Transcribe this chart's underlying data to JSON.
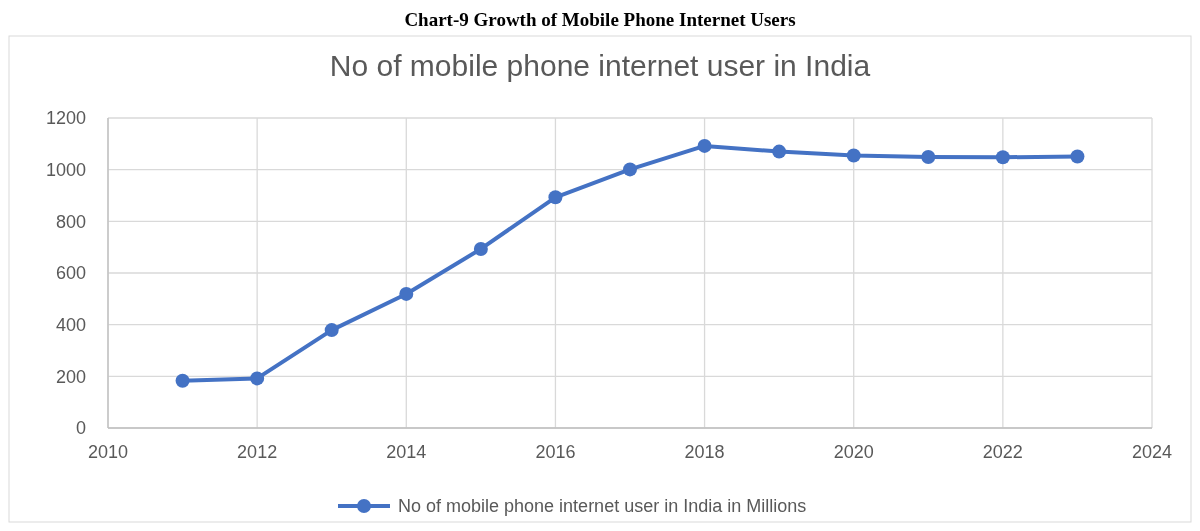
{
  "chart_data": {
    "type": "line",
    "title": "Chart-9 Growth of Mobile Phone Internet Users",
    "subtitle": "No of mobile phone internet user in India",
    "x": [
      2011,
      2012,
      2013,
      2014,
      2015,
      2016,
      2017,
      2018,
      2019,
      2020,
      2021,
      2022,
      2023
    ],
    "series": [
      {
        "name": "No of mobile phone internet user in India in Millions",
        "color": "#4472c4",
        "values": [
          183,
          192,
          379,
          519,
          693,
          893,
          1001,
          1092,
          1070,
          1055,
          1049,
          1048,
          1051
        ]
      }
    ],
    "xlim": [
      2010,
      2024
    ],
    "xticks": [
      2010,
      2012,
      2014,
      2016,
      2018,
      2020,
      2022,
      2024
    ],
    "ylim": [
      0,
      1200
    ],
    "yticks": [
      0,
      200,
      400,
      600,
      800,
      1000,
      1200
    ],
    "grid": true,
    "legend": "bottom",
    "marker": "circle",
    "line_style": "solid"
  }
}
